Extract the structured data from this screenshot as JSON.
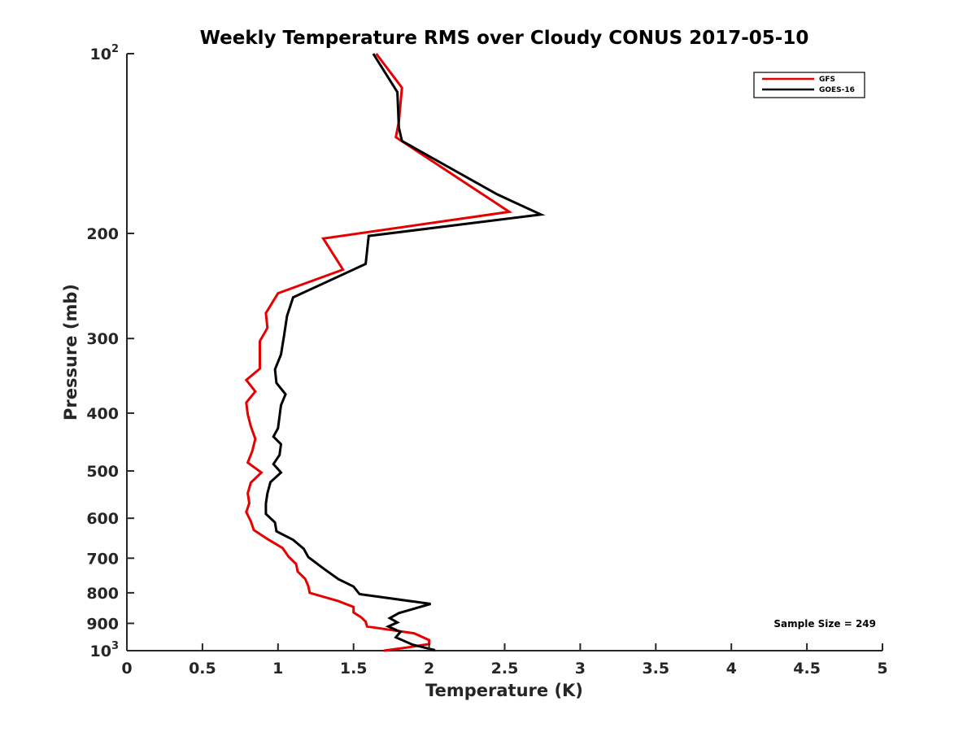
{
  "chart_data": {
    "type": "line",
    "title": "Weekly Temperature RMS over Cloudy CONUS 2017-05-10",
    "xlabel": "Temperature (K)",
    "ylabel": "Pressure (mb)",
    "xlim": [
      0,
      5
    ],
    "ylim": [
      100,
      1000
    ],
    "y_scale": "log",
    "y_reversed": true,
    "x_ticks": [
      "0",
      "0.5",
      "1",
      "1.5",
      "2",
      "2.5",
      "3",
      "3.5",
      "4",
      "4.5",
      "5"
    ],
    "y_ticks": [
      {
        "value": 100,
        "base": "10",
        "exp": "2"
      },
      {
        "value": 200,
        "label": "200"
      },
      {
        "value": 300,
        "label": "300"
      },
      {
        "value": 400,
        "label": "400"
      },
      {
        "value": 500,
        "label": "500"
      },
      {
        "value": 600,
        "label": "600"
      },
      {
        "value": 700,
        "label": "700"
      },
      {
        "value": 800,
        "label": "800"
      },
      {
        "value": 900,
        "label": "900"
      },
      {
        "value": 1000,
        "base": "10",
        "exp": "3"
      }
    ],
    "legend_position": "top-right",
    "annotation": "Sample Size = 249",
    "grid": false,
    "series": [
      {
        "name": "GFS",
        "color": "#e60000",
        "points": [
          [
            1.65,
            100
          ],
          [
            1.82,
            114
          ],
          [
            1.8,
            130
          ],
          [
            1.78,
            138
          ],
          [
            2.53,
            184
          ],
          [
            1.3,
            204
          ],
          [
            1.43,
            230
          ],
          [
            1.0,
            252
          ],
          [
            0.92,
            272
          ],
          [
            0.93,
            288
          ],
          [
            0.88,
            303
          ],
          [
            0.88,
            318
          ],
          [
            0.88,
            337
          ],
          [
            0.79,
            352
          ],
          [
            0.85,
            368
          ],
          [
            0.79,
            384
          ],
          [
            0.8,
            402
          ],
          [
            0.82,
            421
          ],
          [
            0.85,
            442
          ],
          [
            0.83,
            463
          ],
          [
            0.8,
            484
          ],
          [
            0.89,
            503
          ],
          [
            0.82,
            523
          ],
          [
            0.8,
            545
          ],
          [
            0.81,
            566
          ],
          [
            0.79,
            586
          ],
          [
            0.82,
            607
          ],
          [
            0.84,
            628
          ],
          [
            0.93,
            650
          ],
          [
            1.03,
            673
          ],
          [
            1.07,
            696
          ],
          [
            1.12,
            716
          ],
          [
            1.13,
            737
          ],
          [
            1.18,
            758
          ],
          [
            1.2,
            779
          ],
          [
            1.21,
            800
          ],
          [
            1.4,
            826
          ],
          [
            1.5,
            845
          ],
          [
            1.5,
            863
          ],
          [
            1.55,
            879
          ],
          [
            1.58,
            894
          ],
          [
            1.59,
            911
          ],
          [
            1.9,
            935
          ],
          [
            2.0,
            960
          ],
          [
            2.0,
            975
          ],
          [
            1.85,
            988
          ],
          [
            1.7,
            1000
          ]
        ]
      },
      {
        "name": "GOES-16",
        "color": "#000000",
        "points": [
          [
            1.63,
            100
          ],
          [
            1.79,
            116
          ],
          [
            1.8,
            133
          ],
          [
            1.82,
            140
          ],
          [
            2.45,
            172
          ],
          [
            2.74,
            186
          ],
          [
            1.6,
            202
          ],
          [
            1.58,
            225
          ],
          [
            1.1,
            256
          ],
          [
            1.06,
            275
          ],
          [
            1.04,
            297
          ],
          [
            1.02,
            319
          ],
          [
            0.98,
            338
          ],
          [
            0.99,
            356
          ],
          [
            1.05,
            372
          ],
          [
            1.02,
            388
          ],
          [
            1.01,
            405
          ],
          [
            1.0,
            424
          ],
          [
            0.97,
            438
          ],
          [
            1.02,
            451
          ],
          [
            1.01,
            470
          ],
          [
            0.97,
            487
          ],
          [
            1.02,
            503
          ],
          [
            0.95,
            522
          ],
          [
            0.93,
            545
          ],
          [
            0.92,
            567
          ],
          [
            0.92,
            590
          ],
          [
            0.98,
            610
          ],
          [
            0.99,
            631
          ],
          [
            1.1,
            652
          ],
          [
            1.17,
            675
          ],
          [
            1.2,
            697
          ],
          [
            1.3,
            728
          ],
          [
            1.4,
            759
          ],
          [
            1.5,
            781
          ],
          [
            1.54,
            804
          ],
          [
            2.01,
            835
          ],
          [
            1.8,
            865
          ],
          [
            1.74,
            882
          ],
          [
            1.79,
            897
          ],
          [
            1.73,
            911
          ],
          [
            1.81,
            930
          ],
          [
            1.78,
            950
          ],
          [
            1.89,
            977
          ],
          [
            2.04,
            998
          ]
        ]
      }
    ]
  }
}
